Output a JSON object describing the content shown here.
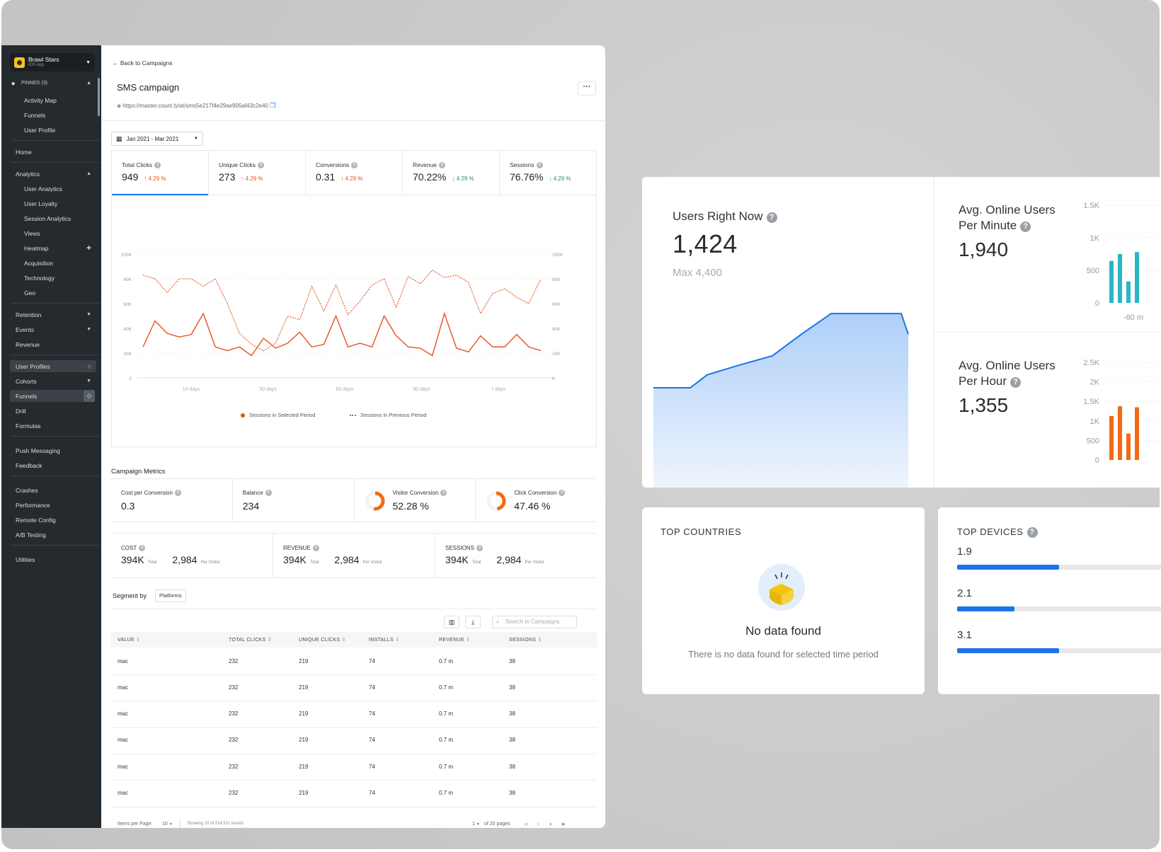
{
  "sidebar": {
    "app_name": "Brawl Stars",
    "app_sub": "iOS App",
    "pinned_label": "PINNED (3)",
    "pinned": [
      "Activity Map",
      "Funnels",
      "User Profile"
    ],
    "home": "Home",
    "analytics": "Analytics",
    "analytics_items": [
      "User Analytics",
      "User Loyalty",
      "Session Analytics",
      "Views",
      "Heatmap",
      "Acquisition",
      "Technology",
      "Geo"
    ],
    "group2": [
      "Retention",
      "Events",
      "Revenue"
    ],
    "group3": [
      "User Profiles",
      "Cohorts",
      "Funnels",
      "Drill",
      "Formulas"
    ],
    "group4": [
      "Push Messaging",
      "Feedback"
    ],
    "group5": [
      "Crashes",
      "Performance",
      "Remote Config",
      "A/B Testing"
    ],
    "utilities": "Utilities"
  },
  "campaign": {
    "back": "Back to Campaigns",
    "title": "SMS campaign",
    "url": "https://master.count.ly/at/sms5e217f4e29ae905af43c2e40",
    "date_range": "Jan 2021 - Mar 2021",
    "metrics": [
      {
        "label": "Total Clicks",
        "value": "949",
        "change": "4.29 %",
        "dir": "up"
      },
      {
        "label": "Unique Clicks",
        "value": "273",
        "change": "4.29 %",
        "dir": "up"
      },
      {
        "label": "Conversions",
        "value": "0.31",
        "change": "4.29 %",
        "dir": "up"
      },
      {
        "label": "Revenue",
        "value": "70.22%",
        "change": "4.29 %",
        "dir": "down"
      },
      {
        "label": "Sessions",
        "value": "76.76%",
        "change": "4.29 %",
        "dir": "down"
      }
    ],
    "campaign_metrics_title": "Campaign Metrics",
    "campaign_metrics": [
      {
        "label": "Cost per Conversion",
        "value": "0.3"
      },
      {
        "label": "Balance",
        "value": "234"
      },
      {
        "label": "Visitor Conversion",
        "value": "52.28 %",
        "ratio": 0.5228
      },
      {
        "label": "Click Conversion",
        "value": "47.46 %",
        "ratio": 0.4746
      }
    ],
    "totals": [
      {
        "label": "COST",
        "total": "394K",
        "total_lbl": "Total",
        "per": "2,984",
        "per_lbl": "Per Visitor"
      },
      {
        "label": "REVENUE",
        "total": "394K",
        "total_lbl": "Total",
        "per": "2,984",
        "per_lbl": "Per Visitor"
      },
      {
        "label": "SESSIONS",
        "total": "394K",
        "total_lbl": "Total",
        "per": "2,984",
        "per_lbl": "Per Visitor"
      }
    ],
    "segment_label": "Segment by",
    "segment_value": "Platforms",
    "search_placeholder": "Search in Campaigns",
    "table_columns": [
      "VALUE",
      "TOTAL CLICKS",
      "UNIQUE CLICKS",
      "INSTALLS",
      "REVENUE",
      "SESSIONS"
    ],
    "table_rows": [
      [
        "mac",
        "232",
        "219",
        "74",
        "0.7 m",
        "38"
      ],
      [
        "mac",
        "232",
        "219",
        "74",
        "0.7 m",
        "38"
      ],
      [
        "mac",
        "232",
        "219",
        "74",
        "0.7 m",
        "38"
      ],
      [
        "mac",
        "232",
        "219",
        "74",
        "0.7 m",
        "38"
      ],
      [
        "mac",
        "232",
        "219",
        "74",
        "0.7 m",
        "38"
      ],
      [
        "mac",
        "232",
        "219",
        "74",
        "0.7 m",
        "38"
      ]
    ],
    "pager": {
      "items_label": "Items per Page:",
      "items_value": "10",
      "showing": "Showing 10 of 214,511 results",
      "page": "1",
      "of_pages": "of 20 pages"
    }
  },
  "chart_data": {
    "type": "line",
    "x_ticks": [
      "14 days",
      "30 days",
      "60 days",
      "90 days",
      "7 days"
    ],
    "y_ticks": [
      "0",
      "20K",
      "40K",
      "60K",
      "80K",
      "100K"
    ],
    "ylim": [
      0,
      100000
    ],
    "series": [
      {
        "name": "Sessions in Selected Period",
        "style": "solid",
        "color": "#e8501e",
        "values": [
          25000,
          46000,
          36000,
          33000,
          35000,
          52000,
          25000,
          22000,
          25000,
          18000,
          32000,
          24000,
          28000,
          37000,
          25000,
          27000,
          50000,
          25000,
          28000,
          25000,
          50000,
          34000,
          25000,
          24000,
          18000,
          52000,
          24000,
          21000,
          34000,
          25000,
          25000,
          35000,
          25000,
          22000
        ]
      },
      {
        "name": "Sessions in Previous Period",
        "style": "dotted",
        "color": "#e8501e",
        "values": [
          83000,
          80000,
          69000,
          80000,
          80000,
          74000,
          80000,
          60000,
          36000,
          27000,
          22000,
          28000,
          50000,
          47000,
          74000,
          54000,
          75000,
          51000,
          62000,
          75000,
          80000,
          57000,
          82000,
          76000,
          87000,
          81000,
          83000,
          77000,
          52000,
          68000,
          72000,
          65000,
          60000,
          80000
        ]
      }
    ]
  },
  "realtime": {
    "users_now_label": "Users Right Now",
    "users_now": "1,424",
    "max": "Max 4,400",
    "area_values": [
      0.0,
      0.0,
      0.15,
      0.26,
      0.37,
      0.62,
      0.86,
      0.86,
      0.86,
      0.86,
      0.62
    ],
    "per_minute_label_1": "Avg. Online Users",
    "per_minute_label_2": "Per Minute",
    "per_minute": "1,940",
    "minute_axis": [
      "1.5K",
      "1K",
      "500",
      "0"
    ],
    "minute_bars": [
      0.43,
      0.5,
      0.22,
      0.52
    ],
    "minute_xlabel": "-60 m",
    "per_hour_label_1": "Avg. Online Users",
    "per_hour_label_2": "Per Hour",
    "per_hour": "1,355",
    "hour_axis": [
      "2.5K",
      "2K",
      "1.5K",
      "1K",
      "500",
      "0"
    ],
    "hour_bars": [
      0.45,
      0.55,
      0.27,
      0.54
    ],
    "colors": {
      "minute": "#29b6c5",
      "hour": "#f26a14",
      "area": "#1a73e8"
    }
  },
  "top_countries": {
    "title": "TOP COUNTRIES",
    "empty_title": "No data found",
    "empty_text": "There is no data found for selected time period"
  },
  "top_devices": {
    "title": "TOP DEVICES",
    "items": [
      {
        "label": "1.9",
        "ratio": 0.5
      },
      {
        "label": "2.1",
        "ratio": 0.28
      },
      {
        "label": "3.1",
        "ratio": 0.5
      }
    ]
  }
}
